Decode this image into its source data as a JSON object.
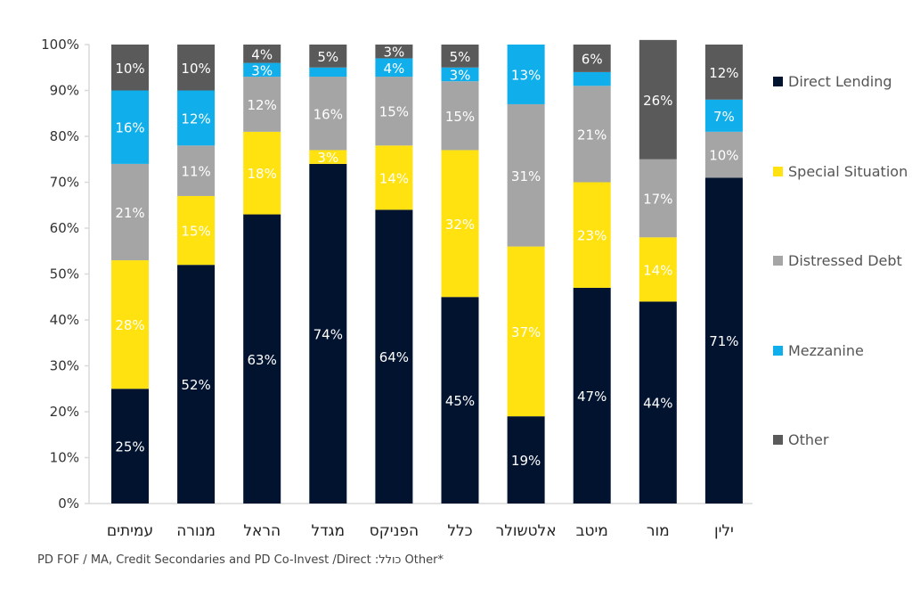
{
  "chart_data": {
    "type": "bar",
    "stacked": true,
    "normalized": true,
    "title": "",
    "xlabel": "",
    "ylabel": "",
    "ylim": [
      0,
      100
    ],
    "y_ticks": [
      "0%",
      "10%",
      "20%",
      "30%",
      "40%",
      "50%",
      "60%",
      "70%",
      "80%",
      "90%",
      "100%"
    ],
    "grid": false,
    "legend_position": "right",
    "categories": [
      "עמיתים",
      "מנורה",
      "הראל",
      "מגדל",
      "הפניקס",
      "כלל",
      "אלטשולר",
      "מיטב",
      "מור",
      "ילין"
    ],
    "series": [
      {
        "name": "Direct Lending",
        "color": "#021330",
        "values": [
          25,
          52,
          63,
          74,
          64,
          45,
          19,
          47,
          44,
          71
        ],
        "labels": [
          "25%",
          "52%",
          "63%",
          "74%",
          "64%",
          "45%",
          "19%",
          "47%",
          "44%",
          "71%"
        ]
      },
      {
        "name": "Special Situation",
        "color": "#FFE20F",
        "values": [
          28,
          15,
          18,
          3,
          14,
          32,
          37,
          23,
          14,
          0
        ],
        "labels": [
          "28%",
          "15%",
          "18%",
          "3%",
          "14%",
          "32%",
          "37%",
          "23%",
          "14%",
          ""
        ]
      },
      {
        "name": "Distressed Debt",
        "color": "#A5A5A5",
        "values": [
          21,
          11,
          12,
          16,
          15,
          15,
          31,
          21,
          17,
          10
        ],
        "labels": [
          "21%",
          "11%",
          "12%",
          "16%",
          "15%",
          "15%",
          "31%",
          "21%",
          "17%",
          "10%"
        ]
      },
      {
        "name": "Mezzanine",
        "color": "#10AEEA",
        "values": [
          16,
          12,
          3,
          2,
          4,
          3,
          13,
          3,
          0,
          7
        ],
        "labels": [
          "16%",
          "12%",
          "3%",
          "",
          "4%",
          "3%",
          "13%",
          "",
          "",
          "7%"
        ]
      },
      {
        "name": "Other",
        "color": "#5A5A5A",
        "values": [
          10,
          10,
          4,
          5,
          3,
          5,
          0,
          6,
          26,
          12
        ],
        "labels": [
          "10%",
          "10%",
          "4%",
          "5%",
          "3%",
          "5%",
          "",
          "6%",
          "26%",
          "12%"
        ]
      }
    ],
    "footnote": "PD FOF / MA, Credit Secondaries and PD Co-Invest /Direct :כולל Other*"
  }
}
